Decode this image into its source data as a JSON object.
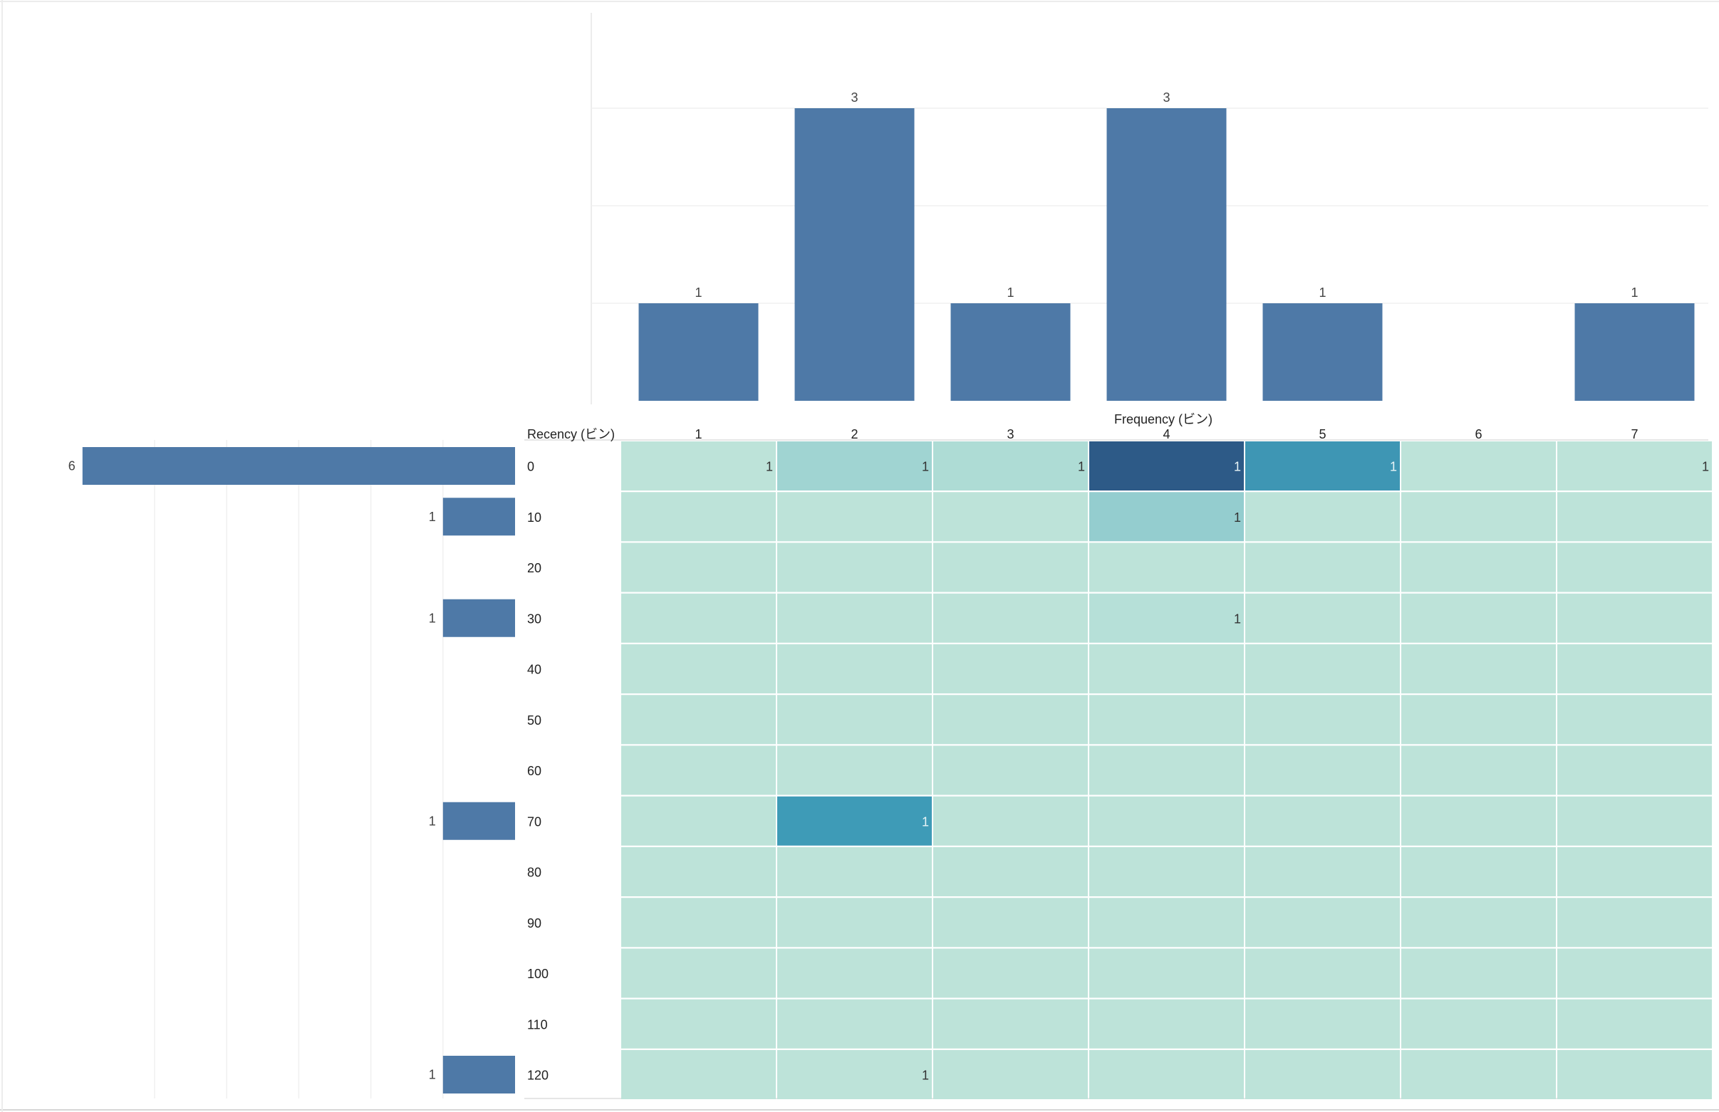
{
  "chart_data": [
    {
      "type": "bar",
      "orientation": "vertical",
      "categories": [
        "1",
        "2",
        "3",
        "4",
        "5",
        "6",
        "7"
      ],
      "values": [
        1,
        3,
        1,
        3,
        1,
        0,
        1
      ],
      "data_labels": [
        "1",
        "3",
        "1",
        "3",
        "1",
        "",
        "1"
      ],
      "ylim": [
        0,
        4
      ],
      "grid": true,
      "color": "#4e79a7"
    },
    {
      "type": "bar",
      "orientation": "horizontal",
      "categories": [
        "0",
        "10",
        "20",
        "30",
        "40",
        "50",
        "60",
        "70",
        "80",
        "90",
        "100",
        "110",
        "120"
      ],
      "values": [
        6,
        1,
        0,
        1,
        0,
        0,
        0,
        1,
        0,
        0,
        0,
        0,
        1
      ],
      "data_labels": [
        "6",
        "1",
        "",
        "1",
        "",
        "",
        "",
        "1",
        "",
        "",
        "",
        "",
        "1"
      ],
      "xlim": [
        0,
        6
      ],
      "grid": true,
      "color": "#4e79a7"
    },
    {
      "type": "heatmap",
      "column_axis_title": "Frequency (ビン)",
      "row_axis_title": "Recency (ビン)",
      "columns": [
        "1",
        "2",
        "3",
        "4",
        "5",
        "6",
        "7"
      ],
      "rows": [
        "0",
        "10",
        "20",
        "30",
        "40",
        "50",
        "60",
        "70",
        "80",
        "90",
        "100",
        "110",
        "120"
      ],
      "values": [
        [
          1,
          1,
          1,
          1,
          1,
          0,
          1
        ],
        [
          0,
          0,
          0,
          1,
          0,
          0,
          0
        ],
        [
          0,
          0,
          0,
          0,
          0,
          0,
          0
        ],
        [
          0,
          0,
          0,
          1,
          0,
          0,
          0
        ],
        [
          0,
          0,
          0,
          0,
          0,
          0,
          0
        ],
        [
          0,
          0,
          0,
          0,
          0,
          0,
          0
        ],
        [
          0,
          0,
          0,
          0,
          0,
          0,
          0
        ],
        [
          0,
          1,
          0,
          0,
          0,
          0,
          0
        ],
        [
          0,
          0,
          0,
          0,
          0,
          0,
          0
        ],
        [
          0,
          0,
          0,
          0,
          0,
          0,
          0
        ],
        [
          0,
          0,
          0,
          0,
          0,
          0,
          0
        ],
        [
          0,
          0,
          0,
          0,
          0,
          0,
          0
        ],
        [
          0,
          1,
          0,
          0,
          0,
          0,
          0
        ]
      ],
      "colors": [
        [
          "#bde3d9",
          "#a0d4d2",
          "#aedcd5",
          "#2d5a87",
          "#3e96b4",
          "#bde3d9",
          "#bde3d9"
        ],
        [
          "#bde3d9",
          "#bde3d9",
          "#bde3d9",
          "#94cdcf",
          "#bde3d9",
          "#bde3d9",
          "#bde3d9"
        ],
        [
          "#bde3d9",
          "#bde3d9",
          "#bde3d9",
          "#bde3d9",
          "#bde3d9",
          "#bde3d9",
          "#bde3d9"
        ],
        [
          "#bde3d9",
          "#bde3d9",
          "#bde3d9",
          "#b6e0d8",
          "#bde3d9",
          "#bde3d9",
          "#bde3d9"
        ],
        [
          "#bde3d9",
          "#bde3d9",
          "#bde3d9",
          "#bde3d9",
          "#bde3d9",
          "#bde3d9",
          "#bde3d9"
        ],
        [
          "#bde3d9",
          "#bde3d9",
          "#bde3d9",
          "#bde3d9",
          "#bde3d9",
          "#bde3d9",
          "#bde3d9"
        ],
        [
          "#bde3d9",
          "#bde3d9",
          "#bde3d9",
          "#bde3d9",
          "#bde3d9",
          "#bde3d9",
          "#bde3d9"
        ],
        [
          "#bde3d9",
          "#3e9bb7",
          "#bde3d9",
          "#bde3d9",
          "#bde3d9",
          "#bde3d9",
          "#bde3d9"
        ],
        [
          "#bde3d9",
          "#bde3d9",
          "#bde3d9",
          "#bde3d9",
          "#bde3d9",
          "#bde3d9",
          "#bde3d9"
        ],
        [
          "#bde3d9",
          "#bde3d9",
          "#bde3d9",
          "#bde3d9",
          "#bde3d9",
          "#bde3d9",
          "#bde3d9"
        ],
        [
          "#bde3d9",
          "#bde3d9",
          "#bde3d9",
          "#bde3d9",
          "#bde3d9",
          "#bde3d9",
          "#bde3d9"
        ],
        [
          "#bde3d9",
          "#bde3d9",
          "#bde3d9",
          "#bde3d9",
          "#bde3d9",
          "#bde3d9",
          "#bde3d9"
        ],
        [
          "#bde3d9",
          "#bde3d9",
          "#bde3d9",
          "#bde3d9",
          "#bde3d9",
          "#bde3d9",
          "#bde3d9"
        ]
      ]
    }
  ]
}
